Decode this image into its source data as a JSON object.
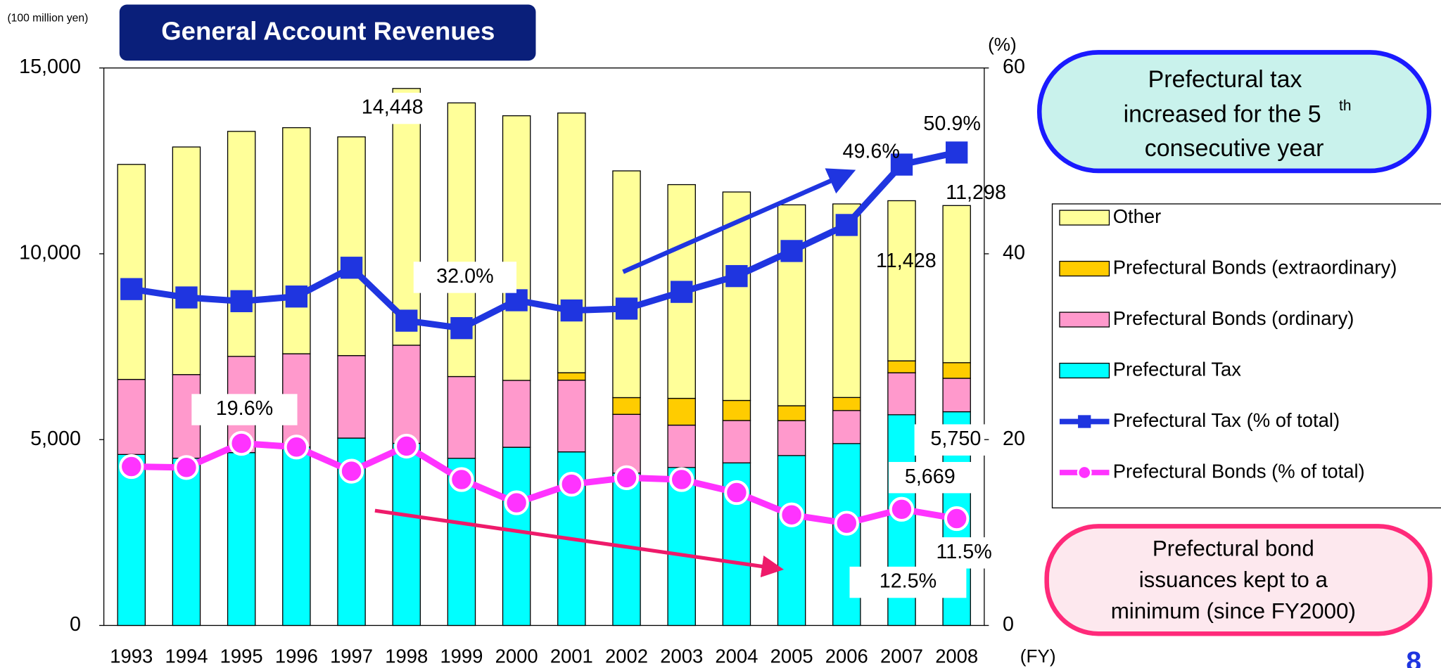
{
  "chart_data": {
    "type": "bar",
    "title": "General Account Revenues",
    "y_unit": "(100 million yen)",
    "y2_unit": "(%)",
    "x_unit": "(FY)",
    "page_number": "8",
    "categories": [
      "1993",
      "1994",
      "1995",
      "1996",
      "1997",
      "1998",
      "1999",
      "2000",
      "2001",
      "2002",
      "2003",
      "2004",
      "2005",
      "2006",
      "2007",
      "2008"
    ],
    "series": [
      {
        "name": "Prefectural Tax",
        "type": "bar",
        "color": "#00ffff",
        "values": [
          4600,
          4500,
          4650,
          4800,
          5041,
          4900,
          4497,
          4794,
          4670,
          4100,
          4250,
          4374,
          4571,
          4893,
          5669,
          5750
        ],
        "value_labels": [
          null,
          null,
          null,
          null,
          null,
          null,
          null,
          null,
          null,
          null,
          null,
          null,
          null,
          null,
          "5,669",
          "5,750"
        ]
      },
      {
        "name": "Prefectural Bonds (ordinary)",
        "type": "bar",
        "color": "#ff99cc",
        "values": [
          2020,
          2250,
          2590,
          2510,
          2220,
          2640,
          2200,
          1800,
          1930,
          1580,
          1140,
          1140,
          940,
          890,
          1130,
          900
        ]
      },
      {
        "name": "Prefectural Bonds (extraordinary)",
        "type": "bar",
        "color": "#ffcc00",
        "values": [
          0,
          0,
          0,
          0,
          0,
          0,
          0,
          0,
          200,
          450,
          720,
          540,
          400,
          350,
          320,
          420
        ]
      },
      {
        "name": "Other",
        "type": "bar",
        "color": "#ffff99",
        "values": [
          5785,
          6124,
          6054,
          6083,
          5885,
          6908,
          7363,
          7120,
          6988,
          6101,
          5751,
          5609,
          5406,
          5209,
          4309,
          4228
        ]
      },
      {
        "name": "Prefectural Tax (% of total)",
        "type": "line",
        "axis": "y2",
        "color": "#1f35e0",
        "marker": "square",
        "values": [
          36.2,
          35.3,
          34.9,
          35.4,
          38.5,
          32.8,
          32.0,
          35.0,
          33.9,
          34.1,
          35.9,
          37.6,
          40.3,
          43.1,
          49.6,
          50.9
        ],
        "value_labels": [
          null,
          null,
          null,
          null,
          null,
          null,
          "32.0%",
          null,
          null,
          null,
          null,
          null,
          null,
          null,
          "49.6%",
          "50.9%"
        ]
      },
      {
        "name": "Prefectural Bonds (% of total)",
        "type": "line",
        "axis": "y2",
        "color": "#ff33ff",
        "marker": "circle",
        "values": [
          17.1,
          17.0,
          19.6,
          19.2,
          16.6,
          19.3,
          15.7,
          13.2,
          15.2,
          15.9,
          15.7,
          14.3,
          11.9,
          11.0,
          12.5,
          11.5
        ],
        "value_labels": [
          null,
          null,
          "19.6%",
          null,
          null,
          null,
          null,
          null,
          null,
          null,
          null,
          null,
          null,
          null,
          "12.5%",
          "11.5%"
        ]
      }
    ],
    "annotations": [
      "14,448",
      "11,428",
      "11,298"
    ],
    "callouts": [
      {
        "lines": [
          "Prefectural tax",
          "increased for the 5",
          "th",
          "consecutive year"
        ]
      },
      {
        "lines": [
          "Prefectural bond",
          "issuances kept to a",
          "minimum (since FY2000)"
        ]
      }
    ],
    "ylim": [
      0,
      15000
    ],
    "yticks": [
      0,
      {
        "value": 5000,
        "label": "5,000"
      },
      {
        "value": 10000,
        "label": "10,000"
      },
      {
        "value": 15000,
        "label": "15,000"
      }
    ],
    "y2lim": [
      0,
      60
    ],
    "y2ticks": [
      0,
      20,
      40,
      60
    ],
    "grid": false
  }
}
